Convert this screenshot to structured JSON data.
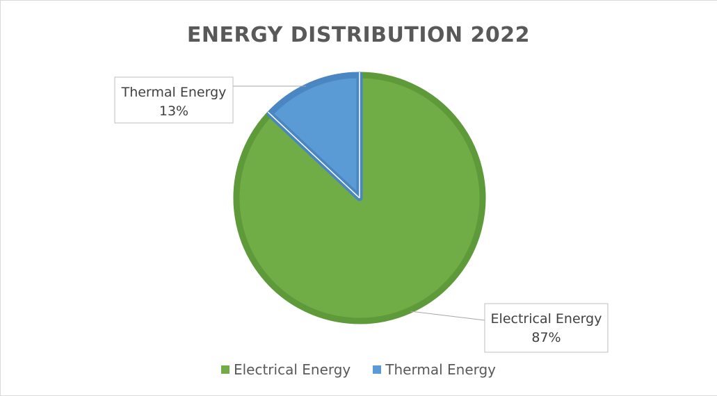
{
  "chart_data": {
    "type": "pie",
    "title": "ENERGY DISTRIBUTION 2022",
    "categories": [
      "Electrical Energy",
      "Thermal Energy"
    ],
    "values": [
      87,
      13
    ],
    "value_labels": [
      "87%",
      "13%"
    ],
    "colors": [
      "#70ad47",
      "#5b9bd5"
    ],
    "edge_colors": [
      "#5e9a3a",
      "#4a86c2"
    ],
    "legend_position": "bottom",
    "data_labels": "outside with callout lines"
  }
}
